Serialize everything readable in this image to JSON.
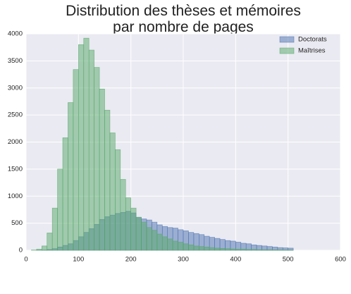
{
  "chart_data": {
    "type": "histogram",
    "title": "Distribution des thèses et mémoires\npar nombre de pages",
    "bins": [
      10,
      20,
      30,
      40,
      50,
      60,
      70,
      80,
      90,
      100,
      110,
      120,
      130,
      140,
      150,
      160,
      170,
      180,
      190,
      200,
      210,
      220,
      230,
      240,
      250,
      260,
      270,
      280,
      290,
      300,
      310,
      320,
      330,
      340,
      350,
      360,
      370,
      380,
      390,
      400,
      410,
      420,
      430,
      440,
      450,
      460,
      470,
      480,
      490,
      500,
      510
    ],
    "series": [
      {
        "name": "Doctorats",
        "color": "#4c72b0",
        "values": [
          0,
          2,
          5,
          15,
          30,
          60,
          90,
          120,
          180,
          250,
          330,
          400,
          480,
          570,
          620,
          650,
          680,
          700,
          720,
          690,
          610,
          580,
          560,
          520,
          470,
          440,
          420,
          410,
          380,
          360,
          330,
          310,
          290,
          260,
          240,
          220,
          200,
          180,
          170,
          150,
          130,
          120,
          100,
          90,
          80,
          70,
          60,
          50,
          45,
          40
        ]
      },
      {
        "name": "Maîtrises",
        "color": "#55a868",
        "values": [
          5,
          20,
          80,
          320,
          780,
          1500,
          2080,
          2730,
          3340,
          3800,
          3920,
          3700,
          3380,
          2980,
          2590,
          2170,
          1860,
          1310,
          970,
          780,
          610,
          520,
          420,
          370,
          300,
          250,
          210,
          170,
          150,
          120,
          100,
          80,
          70,
          60,
          50,
          40,
          35,
          30,
          25,
          20,
          20,
          15,
          15,
          12,
          10,
          10,
          8,
          8,
          6,
          5
        ]
      }
    ],
    "xlim": [
      0,
      600
    ],
    "xticks": [
      0,
      100,
      200,
      300,
      400,
      500,
      600
    ],
    "ylim": [
      0,
      4000
    ],
    "yticks": [
      0,
      500,
      1000,
      1500,
      2000,
      2500,
      3000,
      3500,
      4000
    ],
    "grid": true,
    "legend": "upper right"
  }
}
